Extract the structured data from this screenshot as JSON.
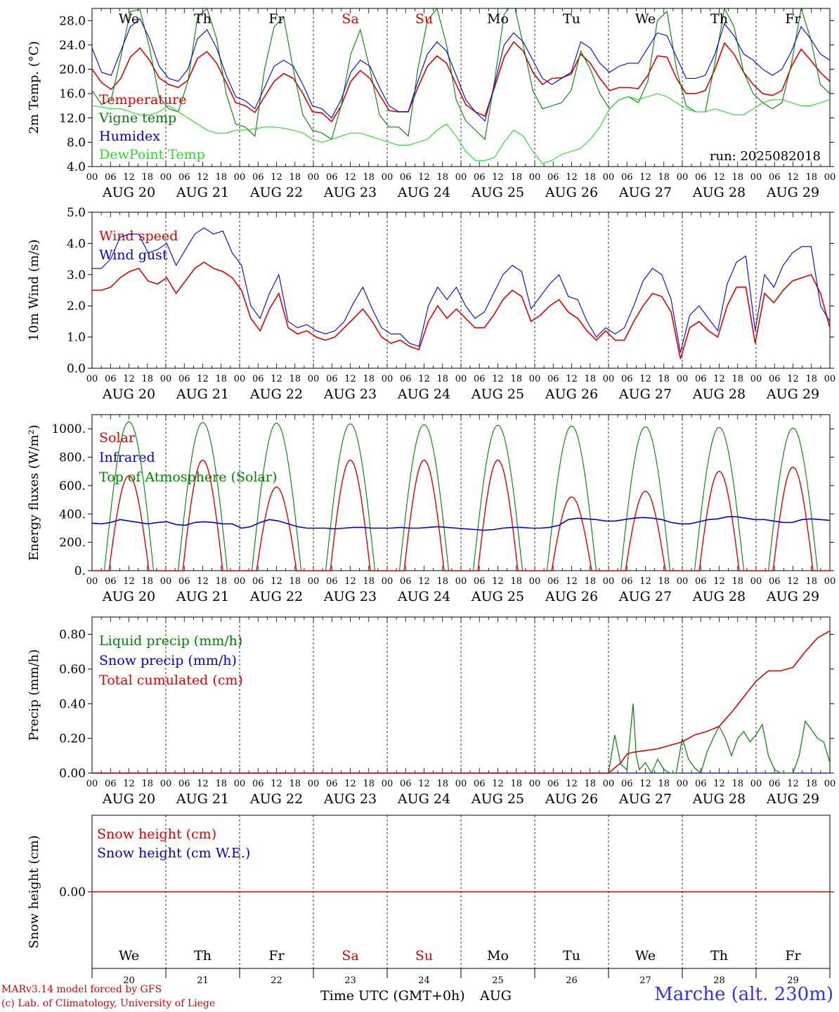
{
  "days": {
    "weekday_short": [
      "We",
      "Th",
      "Fr",
      "Sa",
      "Su",
      "Mo",
      "Tu",
      "We",
      "Th",
      "Fr"
    ],
    "weekend_index": [
      3,
      4
    ],
    "date_labels": [
      "AUG 20",
      "AUG 21",
      "AUG 22",
      "AUG 23",
      "AUG 24",
      "AUG 25",
      "AUG 26",
      "AUG 27",
      "AUG 28",
      "AUG 29"
    ],
    "day_numbers": [
      "20",
      "21",
      "22",
      "23",
      "24",
      "25",
      "26",
      "27",
      "28",
      "29"
    ],
    "hour_ticks": [
      "00",
      "06",
      "12",
      "18"
    ],
    "last_tick": "00"
  },
  "footer": {
    "xlabel": "Time UTC (GMT+0h)",
    "month": "AUG",
    "credit1": "MARv3.14 model forced by GFS",
    "credit2": "(c) Lab. of Climatology, University of Liege",
    "station": "Marche (alt. 230m)"
  },
  "colors": {
    "red": "#e00000",
    "green": "#008000",
    "blue": "#0000dd",
    "lightgreen": "#22dd22",
    "station": "#3030ff"
  },
  "chart_data": [
    {
      "type": "line",
      "ylabel": "2m Temp. (°C)",
      "ylim": [
        4,
        30
      ],
      "yticks": [
        "4.0",
        "8.0",
        "12.0",
        "16.0",
        "20.0",
        "24.0",
        "28.0"
      ],
      "x_unit": "hours since Aug 20 00 UTC (3-hourly)",
      "annotation": "run: 2025082018",
      "series": [
        {
          "name": "Temperature",
          "color": "red",
          "values": [
            20.0,
            17.8,
            16.7,
            18.5,
            22.0,
            23.5,
            21.5,
            18.6,
            17.5,
            17.0,
            18.2,
            21.8,
            22.9,
            21.0,
            17.8,
            14.5,
            14.0,
            12.9,
            15.5,
            18.0,
            19.3,
            18.5,
            16.0,
            13.0,
            12.8,
            11.4,
            14.0,
            18.0,
            19.8,
            18.5,
            15.8,
            13.2,
            13.0,
            13.0,
            17.0,
            20.5,
            22.2,
            21.0,
            17.5,
            14.2,
            13.0,
            12.3,
            17.0,
            22.0,
            24.5,
            23.0,
            19.5,
            17.5,
            18.5,
            18.6,
            19.2,
            22.5,
            21.0,
            18.5,
            16.5,
            17.0,
            17.0,
            16.8,
            19.0,
            22.2,
            22.0,
            18.5,
            16.0,
            16.0,
            16.5,
            20.0,
            24.3,
            22.5,
            19.5,
            17.5,
            16.0,
            15.7,
            16.5,
            20.5,
            23.3,
            21.5,
            19.5,
            18.0
          ]
        },
        {
          "name": "Vigne temp",
          "color": "green",
          "values": [
            16.5,
            14.2,
            15.0,
            22.0,
            29.5,
            29.8,
            23.5,
            15.5,
            13.5,
            13.0,
            18.0,
            28.5,
            30.0,
            25.0,
            16.0,
            11.0,
            10.5,
            9.0,
            20.0,
            27.0,
            28.5,
            20.0,
            12.5,
            10.0,
            9.5,
            8.5,
            14.0,
            22.5,
            26.5,
            20.0,
            12.5,
            10.5,
            10.5,
            9.0,
            20.0,
            28.0,
            30.0,
            24.0,
            15.0,
            11.5,
            10.0,
            8.5,
            18.0,
            29.0,
            31.0,
            24.0,
            16.5,
            13.5,
            14.0,
            14.5,
            16.5,
            23.0,
            20.0,
            16.0,
            13.5,
            15.0,
            15.5,
            14.5,
            18.0,
            28.0,
            29.5,
            20.0,
            14.0,
            13.0,
            13.0,
            21.0,
            30.0,
            27.0,
            19.5,
            16.0,
            14.5,
            13.5,
            14.5,
            21.0,
            30.0,
            25.0,
            17.5,
            16.0
          ]
        },
        {
          "name": "Humidex",
          "color": "blue",
          "values": [
            23.5,
            19.5,
            19.0,
            23.0,
            27.0,
            28.3,
            25.0,
            20.5,
            18.5,
            18.0,
            20.0,
            25.0,
            26.5,
            23.5,
            19.0,
            15.5,
            14.8,
            13.5,
            17.0,
            20.5,
            21.5,
            20.5,
            17.5,
            14.0,
            13.5,
            12.0,
            15.0,
            19.5,
            21.5,
            20.5,
            17.0,
            14.0,
            13.0,
            13.0,
            18.0,
            22.5,
            24.5,
            23.0,
            19.0,
            15.0,
            13.0,
            11.5,
            17.5,
            24.0,
            26.0,
            24.5,
            21.5,
            18.5,
            17.5,
            18.5,
            19.5,
            24.5,
            23.5,
            21.0,
            19.5,
            20.5,
            21.0,
            21.0,
            23.5,
            26.0,
            25.5,
            22.0,
            18.5,
            18.5,
            19.0,
            22.5,
            27.5,
            25.5,
            22.5,
            21.5,
            20.0,
            19.0,
            20.0,
            23.0,
            27.0,
            25.0,
            22.5,
            21.5
          ]
        },
        {
          "name": "DewPoint Temp",
          "color": "lightgreen",
          "values": [
            14.0,
            13.8,
            13.5,
            13.5,
            13.0,
            12.5,
            12.5,
            13.0,
            14.0,
            13.0,
            12.0,
            11.0,
            10.0,
            9.5,
            9.5,
            10.0,
            10.0,
            10.2,
            10.5,
            10.5,
            10.3,
            10.0,
            9.5,
            8.5,
            8.0,
            8.5,
            9.0,
            9.5,
            9.5,
            9.0,
            8.5,
            8.0,
            7.5,
            7.5,
            8.0,
            8.5,
            10.0,
            11.0,
            9.0,
            6.5,
            5.0,
            5.0,
            5.5,
            8.0,
            10.0,
            9.0,
            6.5,
            4.5,
            5.0,
            6.0,
            6.5,
            7.0,
            8.5,
            10.5,
            13.5,
            15.0,
            15.5,
            15.0,
            15.5,
            16.0,
            15.5,
            14.5,
            13.5,
            13.0,
            13.0,
            13.5,
            13.0,
            12.5,
            12.5,
            13.5,
            14.5,
            15.0,
            15.0,
            14.5,
            14.0,
            14.0,
            14.5,
            15.0
          ]
        }
      ]
    },
    {
      "type": "line",
      "ylabel": "10m Wind (m/s)",
      "ylim": [
        0,
        5
      ],
      "yticks": [
        "0.0",
        "1.0",
        "2.0",
        "3.0",
        "4.0",
        "5.0"
      ],
      "series": [
        {
          "name": "Wind speed",
          "color": "red",
          "values": [
            2.5,
            2.5,
            2.6,
            2.9,
            3.1,
            3.2,
            2.8,
            2.7,
            2.9,
            2.4,
            2.8,
            3.2,
            3.4,
            3.2,
            3.1,
            2.9,
            2.5,
            1.6,
            1.2,
            1.9,
            2.4,
            1.3,
            1.1,
            1.2,
            1.0,
            0.9,
            1.0,
            1.3,
            1.6,
            1.9,
            1.5,
            1.0,
            0.8,
            0.9,
            0.7,
            0.6,
            1.5,
            2.0,
            1.6,
            1.9,
            1.6,
            1.3,
            1.3,
            1.7,
            2.2,
            2.5,
            2.3,
            1.5,
            1.7,
            2.0,
            2.2,
            1.8,
            1.6,
            1.2,
            0.9,
            1.2,
            0.9,
            0.9,
            1.5,
            2.0,
            2.4,
            2.3,
            1.8,
            0.3,
            1.3,
            1.5,
            1.2,
            1.0,
            2.0,
            2.6,
            2.6,
            0.8,
            2.4,
            2.1,
            2.5,
            2.8,
            2.9,
            3.0,
            2.4,
            1.3
          ]
        },
        {
          "name": "Wind gust",
          "color": "blue",
          "values": [
            3.2,
            3.2,
            3.5,
            4.2,
            4.3,
            4.3,
            3.7,
            3.8,
            4.0,
            3.3,
            3.8,
            4.3,
            4.5,
            4.3,
            4.4,
            3.7,
            3.3,
            2.0,
            1.6,
            2.4,
            3.0,
            1.5,
            1.3,
            1.4,
            1.2,
            1.1,
            1.2,
            1.5,
            2.1,
            2.6,
            1.9,
            1.3,
            1.1,
            1.1,
            0.8,
            0.7,
            2.0,
            2.6,
            2.2,
            2.6,
            2.0,
            1.6,
            1.8,
            2.4,
            3.0,
            3.3,
            3.1,
            1.9,
            2.3,
            2.7,
            3.0,
            2.3,
            2.2,
            1.5,
            1.0,
            1.3,
            1.1,
            1.3,
            2.0,
            2.8,
            3.2,
            3.0,
            2.2,
            0.5,
            1.7,
            2.0,
            1.6,
            1.2,
            2.7,
            3.4,
            3.6,
            1.2,
            3.0,
            2.6,
            3.3,
            3.7,
            3.9,
            3.9,
            2.0,
            1.5
          ]
        }
      ]
    },
    {
      "type": "line",
      "ylabel": "Energy fluxes (W/m²)",
      "ylim": [
        0,
        1100
      ],
      "yticks": [
        "0.",
        "200.",
        "400.",
        "600.",
        "800.",
        "1000."
      ],
      "series": [
        {
          "name": "Solar",
          "color": "red",
          "day_peaks": [
            670,
            780,
            590,
            780,
            780,
            780,
            520,
            560,
            700,
            730
          ]
        },
        {
          "name": "Infrared",
          "color": "blue",
          "values": [
            335,
            330,
            340,
            360,
            350,
            340,
            330,
            340,
            345,
            325,
            320,
            340,
            345,
            340,
            330,
            330,
            300,
            310,
            340,
            360,
            350,
            330,
            310,
            300,
            300,
            300,
            295,
            300,
            305,
            305,
            300,
            300,
            300,
            305,
            300,
            300,
            305,
            310,
            305,
            300,
            295,
            290,
            285,
            290,
            300,
            305,
            305,
            300,
            300,
            305,
            320,
            360,
            370,
            365,
            360,
            350,
            350,
            360,
            370,
            375,
            370,
            360,
            340,
            330,
            330,
            345,
            360,
            365,
            380,
            380,
            370,
            360,
            360,
            350,
            340,
            340,
            360,
            365,
            360,
            355
          ]
        },
        {
          "name": "Top of Atmosphere (Solar)",
          "color": "green",
          "day_peaks": [
            1050,
            1045,
            1040,
            1035,
            1030,
            1025,
            1020,
            1015,
            1010,
            1005
          ]
        }
      ]
    },
    {
      "type": "line",
      "ylabel": "Precip (mm/h)",
      "ylim": [
        0,
        0.9
      ],
      "yticks": [
        "0.00",
        "0.20",
        "0.40",
        "0.60",
        "0.80"
      ],
      "series": [
        {
          "name": "Liquid precip (mm/h)",
          "color": "green",
          "x_hours": [
            0,
            168,
            170,
            172,
            174,
            176,
            177,
            178,
            180,
            182,
            184,
            186,
            188,
            190,
            192,
            194,
            196,
            198,
            200,
            202,
            204,
            206,
            208,
            210,
            212,
            214,
            216,
            218,
            220,
            222,
            224,
            226,
            228,
            230,
            232,
            234,
            236,
            238,
            240
          ],
          "values": [
            0,
            0,
            0.22,
            0.05,
            0.02,
            0.4,
            0.1,
            0.02,
            0.06,
            0.0,
            0.08,
            0.02,
            0.0,
            0.0,
            0.2,
            0.08,
            0.03,
            0.0,
            0.12,
            0.2,
            0.27,
            0.2,
            0.1,
            0.2,
            0.24,
            0.18,
            0.22,
            0.28,
            0.1,
            0.02,
            0.0,
            0.0,
            0.0,
            0.1,
            0.3,
            0.25,
            0.2,
            0.18,
            0.06
          ]
        },
        {
          "name": "Snow precip (mm/h)",
          "color": "blue",
          "x_hours": [
            0,
            240
          ],
          "values": [
            0,
            0
          ]
        },
        {
          "name": "Total cumulated (cm)",
          "color": "red",
          "x_hours": [
            0,
            168,
            170,
            172,
            174,
            176,
            180,
            184,
            188,
            192,
            196,
            200,
            204,
            208,
            212,
            216,
            220,
            224,
            228,
            232,
            236,
            240
          ],
          "values": [
            0,
            0,
            0.03,
            0.06,
            0.11,
            0.12,
            0.13,
            0.14,
            0.16,
            0.18,
            0.22,
            0.24,
            0.27,
            0.35,
            0.44,
            0.53,
            0.59,
            0.59,
            0.61,
            0.7,
            0.78,
            0.82
          ]
        }
      ]
    },
    {
      "type": "line",
      "ylabel": "Snow height (cm)",
      "ylim": [
        -0.5,
        0.5
      ],
      "yticks": [
        "0.00"
      ],
      "series": [
        {
          "name": "Snow height (cm)",
          "color": "red",
          "values": [
            0,
            0
          ]
        },
        {
          "name": "Snow height (cm W.E.)",
          "color": "blue",
          "values": [
            0,
            0
          ]
        }
      ]
    }
  ]
}
